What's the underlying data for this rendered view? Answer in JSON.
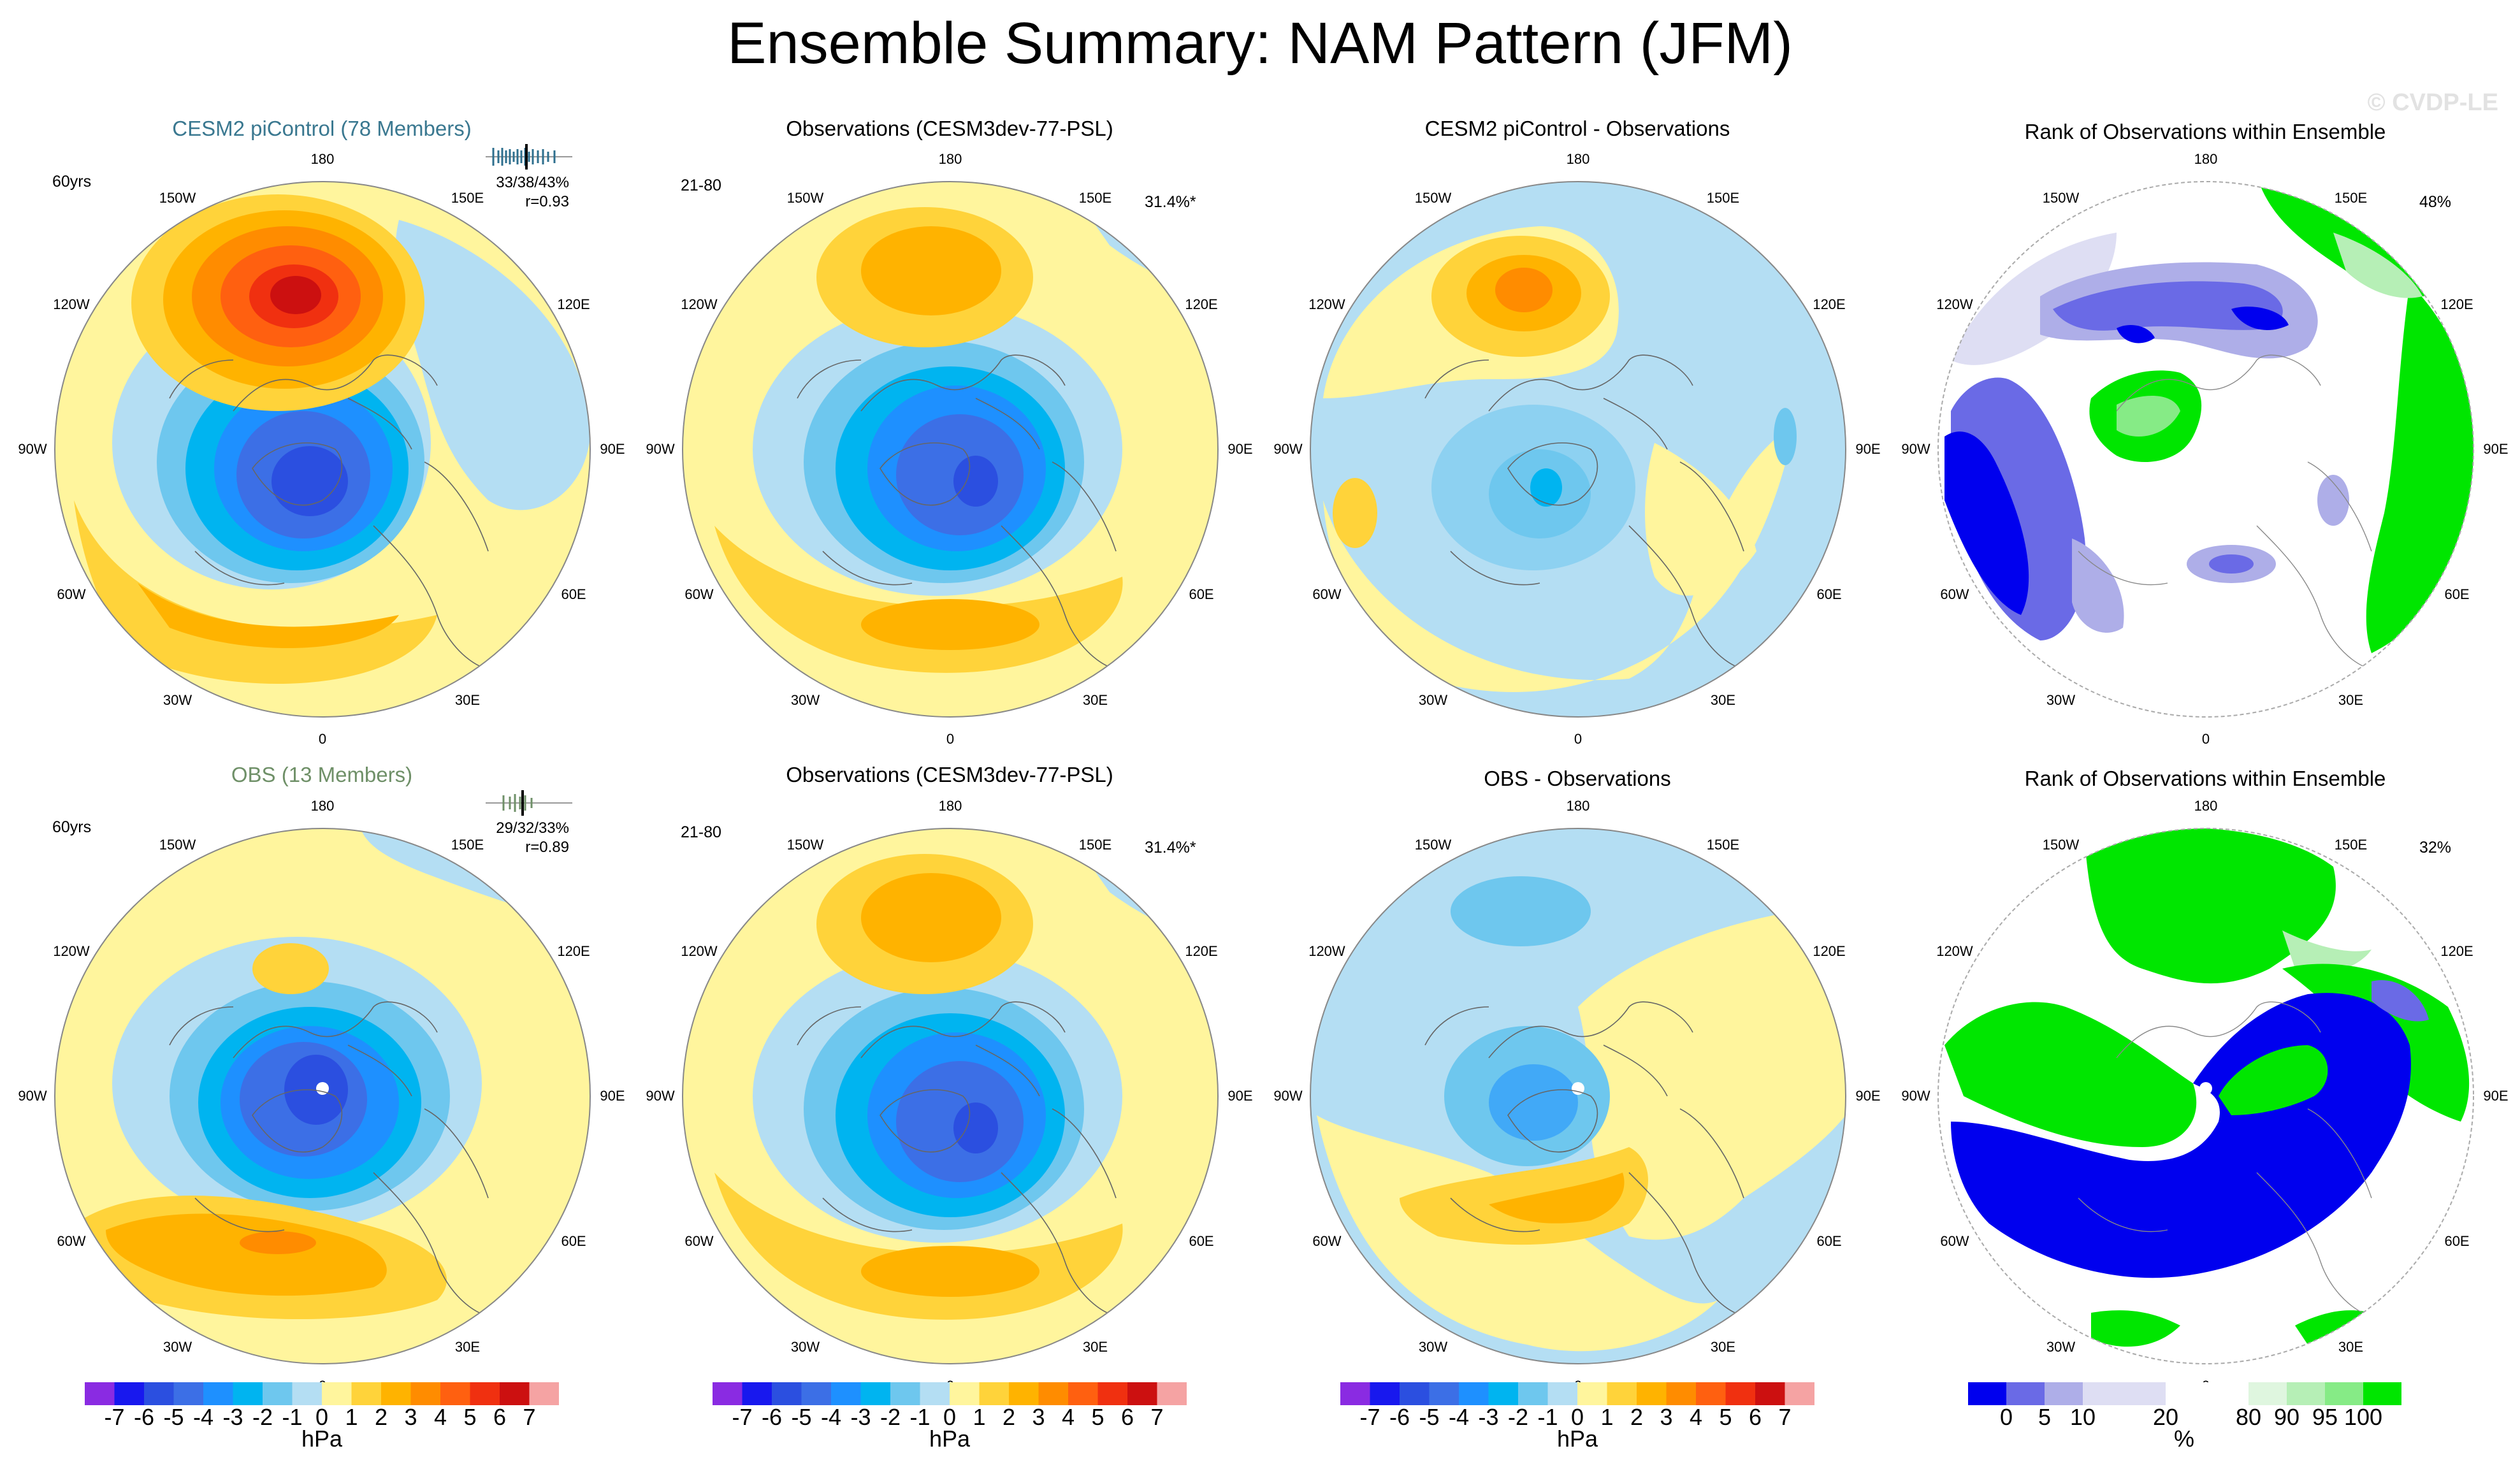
{
  "title": "Ensemble Summary: NAM Pattern (JFM)",
  "watermark": "© CVDP-LE",
  "lon_labels": [
    "180",
    "150E",
    "120E",
    "90E",
    "60E",
    "30E",
    "0",
    "30W",
    "60W",
    "90W",
    "120W",
    "150W"
  ],
  "panels": {
    "cesm": {
      "title": "CESM2 piControl (78 Members)",
      "corner": "60yrs",
      "stats": "33/38/43%",
      "r": "r=0.93"
    },
    "obs_top": {
      "title": "Observations (CESM3dev-77-PSL)",
      "corner": "21-80",
      "pct": "31.4%*"
    },
    "diff_top": {
      "title": "CESM2 piControl - Observations"
    },
    "rank_top": {
      "title": "Rank of Observations within Ensemble",
      "pct": "48%"
    },
    "obs_ens": {
      "title": "OBS (13 Members)",
      "corner": "60yrs",
      "stats": "29/32/33%",
      "r": "r=0.89"
    },
    "obs_bottom": {
      "title": "Observations (CESM3dev-77-PSL)",
      "corner": "21-80",
      "pct": "31.4%*"
    },
    "diff_bottom": {
      "title": "OBS - Observations"
    },
    "rank_bottom": {
      "title": "Rank of Observations within Ensemble",
      "pct": "32%"
    }
  },
  "colorbar_hpa": {
    "unit": "hPa",
    "ticks": [
      "-7",
      "-6",
      "-5",
      "-4",
      "-3",
      "-2",
      "-1",
      "0",
      "1",
      "2",
      "3",
      "4",
      "5",
      "6",
      "7"
    ],
    "colors": [
      "#8a2be2",
      "#1818ee",
      "#2b4fe0",
      "#3c6fe6",
      "#1e90ff",
      "#00b4f0",
      "#6ec7ee",
      "#b4def3",
      "#fff59d",
      "#ffd33a",
      "#ffb300",
      "#ff8c00",
      "#ff6010",
      "#f03010",
      "#cc1010",
      "#f5a3a3"
    ]
  },
  "colorbar_rank": {
    "unit": "%",
    "ticks": [
      "0",
      "5",
      "10",
      "20",
      "80",
      "90",
      "95",
      "100"
    ],
    "colors": [
      "#0000ee",
      "#6a6ae6",
      "#aeaee8",
      "#dedef3",
      "#ffffff",
      "#dff6df",
      "#b6efb6",
      "#86eb86",
      "#00e600"
    ]
  }
}
